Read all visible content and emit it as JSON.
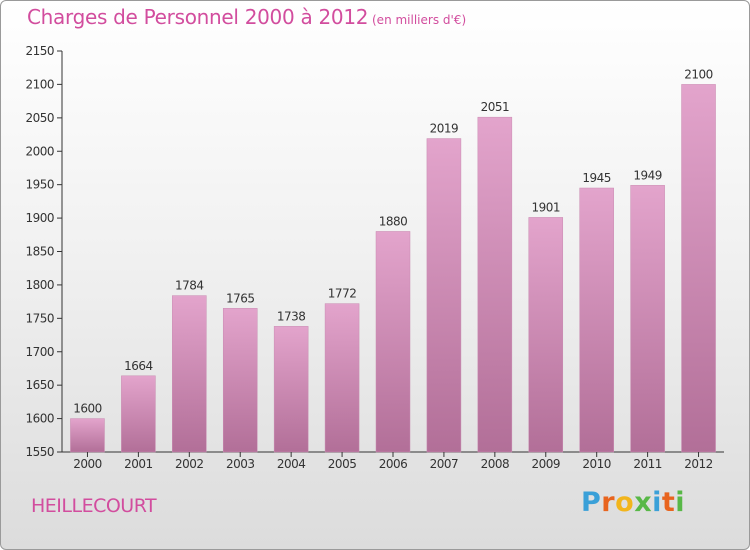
{
  "title": "Charges de Personnel 2000 à 2012",
  "subtitle": "(en milliers d'€)",
  "commune": "HEILLECOURT",
  "logo": {
    "text": "Proxiti",
    "letter_colors": [
      "#3aa0d8",
      "#e8641e",
      "#f2b51c",
      "#58b847",
      "#3aa0d8",
      "#e8641e",
      "#58b847"
    ]
  },
  "colors": {
    "title": "#d24d9e",
    "bar_top": "#e3a4cc",
    "bar_bottom": "#b26f98",
    "axis": "#333333"
  },
  "chart_data": {
    "type": "bar",
    "categories": [
      "2000",
      "2001",
      "2002",
      "2003",
      "2004",
      "2005",
      "2006",
      "2007",
      "2008",
      "2009",
      "2010",
      "2011",
      "2012"
    ],
    "values": [
      1600,
      1664,
      1784,
      1765,
      1738,
      1772,
      1880,
      2019,
      2051,
      1901,
      1945,
      1949,
      2100
    ],
    "ylim": [
      1550,
      2150
    ],
    "yticks": [
      1550,
      1600,
      1650,
      1700,
      1750,
      1800,
      1850,
      1900,
      1950,
      2000,
      2050,
      2100,
      2150
    ],
    "data_labels": true,
    "grid": false
  }
}
